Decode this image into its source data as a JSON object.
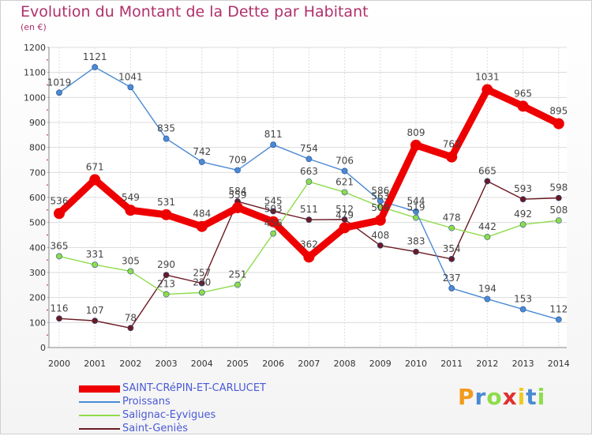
{
  "title": "Evolution du Montant de la Dette par Habitant",
  "subtitle": "(en €)",
  "logo": "Proxiti",
  "chart_data": {
    "type": "line",
    "x": [
      "2000",
      "2001",
      "2002",
      "2003",
      "2004",
      "2005",
      "2006",
      "2007",
      "2008",
      "2009",
      "2010",
      "2011",
      "2012",
      "2013",
      "2014"
    ],
    "ylim": [
      0,
      1200
    ],
    "yticks": [
      0,
      100,
      200,
      300,
      400,
      500,
      600,
      700,
      800,
      900,
      1000,
      1100,
      1200
    ],
    "grid": true,
    "legend_position": "bottom-left",
    "series": [
      {
        "name": "Saint-Geniès",
        "color": "#6b1a22",
        "values": [
          116,
          107,
          78,
          290,
          257,
          584,
          545,
          511,
          512,
          408,
          383,
          354,
          665,
          593,
          598
        ],
        "labels": [
          "116",
          "107",
          "78",
          "290",
          "257",
          "584",
          "545",
          "511",
          "512",
          "408",
          "383",
          "354",
          "665",
          "593",
          "598"
        ]
      },
      {
        "name": "Salignac-Eyvigues",
        "color": "#8edc4a",
        "values": [
          365,
          331,
          305,
          213,
          220,
          251,
          456,
          663,
          621,
          563,
          519,
          478,
          442,
          492,
          508
        ],
        "labels": [
          "365",
          "331",
          "305",
          "213",
          "220",
          "251",
          "456",
          "663",
          "621",
          "563",
          "519",
          "478",
          "442",
          "492",
          "508"
        ]
      },
      {
        "name": "Proissans",
        "color": "#4a8ad4",
        "values": [
          1019,
          1121,
          1041,
          835,
          742,
          709,
          811,
          754,
          706,
          586,
          544,
          237,
          194,
          153,
          112
        ],
        "labels": [
          "1019",
          "1121",
          "1041",
          "835",
          "742",
          "709",
          "811",
          "754",
          "706",
          "586",
          "544",
          "237",
          "194",
          "153",
          "112"
        ]
      },
      {
        "name": "SAINT-CRéPIN-ET-CARLUCET",
        "color": "#ee0000",
        "main": true,
        "values": [
          536,
          671,
          549,
          531,
          484,
          559,
          503,
          362,
          479,
          509,
          809,
          762,
          1031,
          965,
          895
        ],
        "labels": [
          "536",
          "671",
          "549",
          "531",
          "484",
          "559",
          "503",
          "362",
          "479",
          "509",
          "809",
          "762",
          "1031",
          "965",
          "895"
        ]
      }
    ]
  },
  "legend": [
    {
      "label": "SAINT-CRéPIN-ET-CARLUCET",
      "color": "#ee0000",
      "thick": true
    },
    {
      "label": "Proissans",
      "color": "#4a8ad4",
      "thick": false
    },
    {
      "label": "Salignac-Eyvigues",
      "color": "#8edc4a",
      "thick": false
    },
    {
      "label": "Saint-Geniès",
      "color": "#6b1a22",
      "thick": false
    }
  ]
}
